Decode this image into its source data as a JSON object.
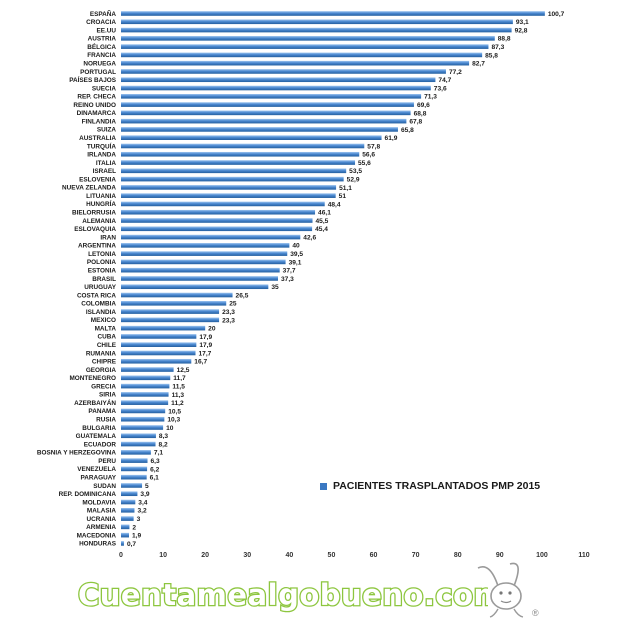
{
  "colors": {
    "bar": "#3a78c2",
    "bar_light": "#7fb0e8",
    "watermark_outline": "#8dc63f"
  },
  "chart_data": {
    "type": "bar",
    "orientation": "horizontal",
    "categories": [
      "ESPAÑA",
      "CROACIA",
      "EE.UU",
      "AUSTRIA",
      "BÉLGICA",
      "FRANCIA",
      "NORUEGA",
      "PORTUGAL",
      "PAÍSES BAJOS",
      "SUECIA",
      "REP. CHECA",
      "REINO UNIDO",
      "DINAMARCA",
      "FINLANDIA",
      "SUIZA",
      "AUSTRALIA",
      "TURQUÍA",
      "IRLANDA",
      "ITALIA",
      "ISRAEL",
      "ESLOVENIA",
      "NUEVA ZELANDA",
      "LITUANIA",
      "HUNGRÍA",
      "BIELORRUSIA",
      "ALEMANIA",
      "ESLOVAQUIA",
      "IRAN",
      "ARGENTINA",
      "LETONIA",
      "POLONIA",
      "ESTONIA",
      "BRASIL",
      "URUGUAY",
      "COSTA RICA",
      "COLOMBIA",
      "ISLANDIA",
      "MEXICO",
      "MALTA",
      "CUBA",
      "CHILE",
      "RUMANIA",
      "CHIPRE",
      "GEORGIA",
      "MONTENEGRO",
      "GRECIA",
      "SIRIA",
      "AZERBAIYÁN",
      "PANAMA",
      "RUSIA",
      "BULGARIA",
      "GUATEMALA",
      "ECUADOR",
      "BOSNIA Y HERZEGOVINA",
      "PERU",
      "VENEZUELA",
      "PARAGUAY",
      "SUDAN",
      "REP. DOMINICANA",
      "MOLDAVIA",
      "MALASIA",
      "UCRANIA",
      "ARMENIA",
      "MACEDONIA",
      "HONDURAS"
    ],
    "series": [
      {
        "name": "PACIENTES TRASPLANTADOS PMP 2015",
        "values": [
          100.7,
          93.1,
          92.8,
          88.8,
          87.3,
          85.8,
          82.7,
          77.2,
          74.7,
          73.6,
          71.3,
          69.6,
          68.8,
          67.8,
          65.8,
          61.9,
          57.8,
          56.6,
          55.6,
          53.5,
          52.9,
          51.1,
          51,
          48.4,
          46.1,
          45.5,
          45.4,
          42.6,
          40,
          39.5,
          39.1,
          37.7,
          37.3,
          35,
          26.5,
          25,
          23.3,
          23.3,
          20,
          17.9,
          17.9,
          17.7,
          16.7,
          12.5,
          11.7,
          11.5,
          11.3,
          11.2,
          10.5,
          10.3,
          10,
          8.3,
          8.2,
          7.1,
          6.3,
          6.2,
          6.1,
          5,
          3.9,
          3.4,
          3.2,
          3,
          2,
          1.9,
          0.7
        ],
        "value_labels": [
          "100,7",
          "93,1",
          "92,8",
          "88,8",
          "87,3",
          "85,8",
          "82,7",
          "77,2",
          "74,7",
          "73,6",
          "71,3",
          "69,6",
          "68,8",
          "67,8",
          "65,8",
          "61,9",
          "57,8",
          "56,6",
          "55,6",
          "53,5",
          "52,9",
          "51,1",
          "51",
          "48,4",
          "46,1",
          "45,5",
          "45,4",
          "42,6",
          "40",
          "39,5",
          "39,1",
          "37,7",
          "37,3",
          "35",
          "26,5",
          "25",
          "23,3",
          "23,3",
          "20",
          "17,9",
          "17,9",
          "17,7",
          "16,7",
          "12,5",
          "11,7",
          "11,5",
          "11,3",
          "11,2",
          "10,5",
          "10,3",
          "10",
          "8,3",
          "8,2",
          "7,1",
          "6,3",
          "6,2",
          "6,1",
          "5",
          "3,9",
          "3,4",
          "3,2",
          "3",
          "2",
          "1,9",
          "0,7"
        ]
      }
    ],
    "xlim": [
      0,
      110
    ],
    "x_ticks": [
      "0",
      "10",
      "20",
      "30",
      "40",
      "50",
      "60",
      "70",
      "80",
      "90",
      "100",
      "110"
    ],
    "grid": false,
    "legend_position": "bottom-right"
  },
  "watermark": {
    "text": "Cuentamealgobueno.com",
    "registered_mark": "®"
  }
}
